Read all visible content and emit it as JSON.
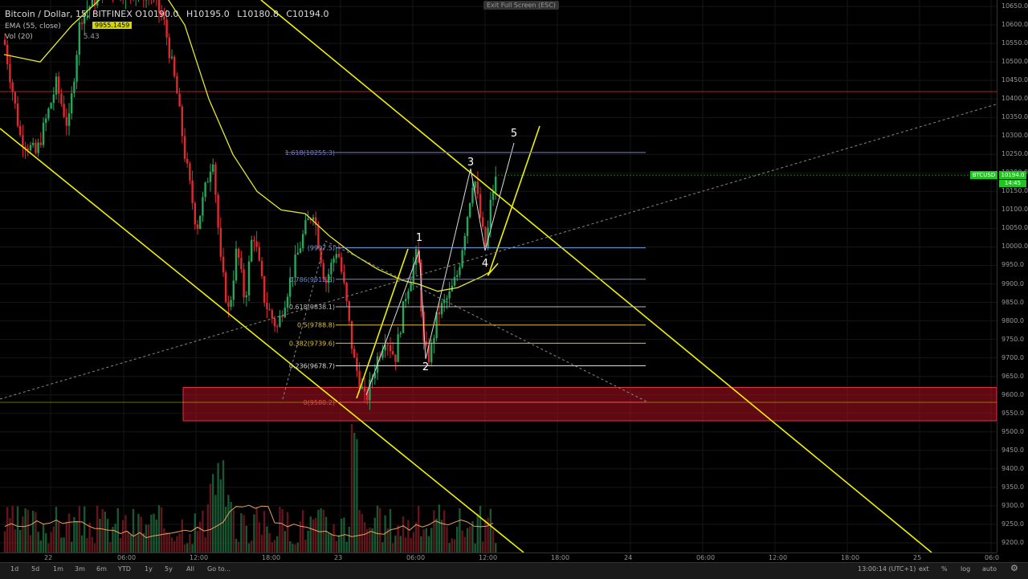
{
  "header": {
    "title": "Bitcoin / Dollar, 15, BITFINEX",
    "ohlc": {
      "open": "O10190.0",
      "high": "H10195.0",
      "low": "L10180.8",
      "close": "C10194.0"
    },
    "ema_label": "EMA (55, close)",
    "ema_value": "9955.1459",
    "vol_label": "Vol (20)",
    "vol_value": "5.43",
    "exit_fullscreen": "Exit Full Screen (ESC)"
  },
  "price_axis": {
    "ticks": [
      "10650.0",
      "10600.0",
      "10550.0",
      "10500.0",
      "10450.0",
      "10400.0",
      "10350.0",
      "10300.0",
      "10250.0",
      "10200.0",
      "10150.0",
      "10100.0",
      "10050.0",
      "10000.0",
      "9950.0",
      "9900.0",
      "9850.0",
      "9800.0",
      "9750.0",
      "9700.0",
      "9650.0",
      "9600.0",
      "9550.0",
      "9500.0",
      "9450.0",
      "9400.0",
      "9350.0",
      "9300.0",
      "9250.0",
      "9200.0"
    ],
    "last_price_symbol": "BTCUSD",
    "last_price": "10194.0",
    "countdown": "14:45"
  },
  "time_axis": {
    "ticks": [
      "22",
      "06:00",
      "12:00",
      "18:00",
      "23",
      "06:00",
      "12:00",
      "18:00",
      "24",
      "06:00",
      "12:00",
      "18:00",
      "25",
      "06:0"
    ]
  },
  "bottom_bar": {
    "timeframes": [
      "1d",
      "5d",
      "1m",
      "3m",
      "6m",
      "YTD",
      "1y",
      "5y",
      "All"
    ],
    "goto": "Go to...",
    "clock": "13:00:14 (UTC+1)",
    "options": [
      "ext",
      "%",
      "log",
      "auto"
    ],
    "settings_icon": "gear-icon"
  },
  "chart_data": {
    "type": "candlestick",
    "symbol": "Bitcoin / Dollar",
    "interval": "15",
    "exchange": "BITFINEX",
    "ylim": [
      9180,
      10670
    ],
    "last_price": 10194.0,
    "colors": {
      "up": "#26a65b",
      "down": "#e0282e",
      "ema": "#e6e62e",
      "trend": "#f0f000",
      "zone": "#b01020"
    },
    "fib_levels": [
      {
        "label": "1.618(10255.3)",
        "value": 10255.3
      },
      {
        "label": "(9997.5)",
        "value": 9997.5
      },
      {
        "label": "0.786(9912.5)",
        "value": 9912.5
      },
      {
        "label": "0.618(9838.1)",
        "value": 9838.1
      },
      {
        "label": "0.5(9788.8)",
        "value": 9788.8
      },
      {
        "label": "0.382(9739.6)",
        "value": 9739.6
      },
      {
        "label": "0.236(9678.7)",
        "value": 9678.7
      },
      {
        "label": "0(9580.2)",
        "value": 9580.2
      }
    ],
    "horizontal_lines": [
      10420,
      9580
    ],
    "supply_zone": [
      9530,
      9620
    ],
    "wave_labels": [
      "1",
      "2",
      "3",
      "4",
      "5"
    ],
    "series_shape": "downtrend from ~10650 to ~9580, then rising impulse to ~10210"
  }
}
